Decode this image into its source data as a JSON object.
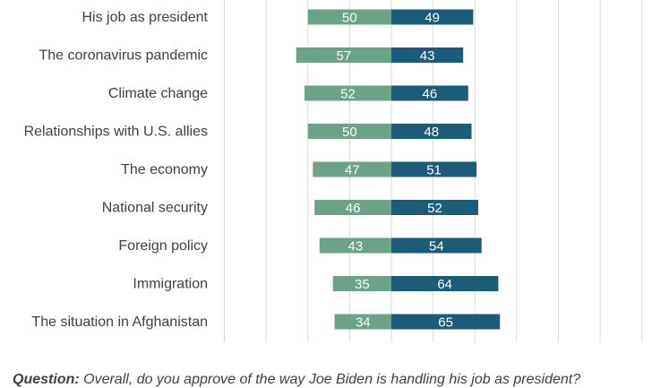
{
  "chart_data": {
    "type": "bar",
    "orientation": "diverging-horizontal",
    "categories": [
      "His job as president",
      "The coronavirus pandemic",
      "Climate change",
      "Relationships with U.S. allies",
      "The economy",
      "National security",
      "Foreign policy",
      "Immigration",
      "The situation in Afghanistan"
    ],
    "series": [
      {
        "color": "#6aa387",
        "values": [
          50,
          57,
          52,
          50,
          47,
          46,
          43,
          35,
          34
        ]
      },
      {
        "color": "#1b5c7a",
        "values": [
          49,
          43,
          46,
          48,
          51,
          52,
          54,
          64,
          65
        ]
      }
    ],
    "xlim": [
      -100,
      100
    ],
    "grid": true,
    "legend": "none"
  },
  "footer": {
    "question_prefix": "Question:",
    "question_text": " Overall, do you approve of the way Joe Biden is handling his job as president?"
  }
}
